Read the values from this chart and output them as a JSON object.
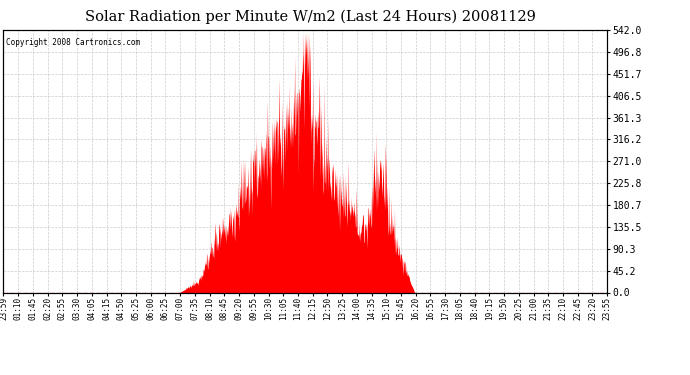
{
  "title": "Solar Radiation per Minute W/m2 (Last 24 Hours) 20081129",
  "copyright": "Copyright 2008 Cartronics.com",
  "background_color": "#ffffff",
  "plot_bg_color": "#ffffff",
  "fill_color": "#ff0000",
  "grid_color": "#cccccc",
  "dashed_line_color": "#ff0000",
  "ylim": [
    0.0,
    542.0
  ],
  "yticks": [
    0.0,
    45.2,
    90.3,
    135.5,
    180.7,
    225.8,
    271.0,
    316.2,
    361.3,
    406.5,
    451.7,
    496.8,
    542.0
  ],
  "ytick_labels": [
    "0.0",
    "45.2",
    "90.3",
    "135.5",
    "180.7",
    "225.8",
    "271.0",
    "316.2",
    "361.3",
    "406.5",
    "451.7",
    "496.8",
    "542.0"
  ],
  "xtick_labels": [
    "23:59",
    "01:10",
    "01:45",
    "02:20",
    "02:55",
    "03:30",
    "04:05",
    "04:15",
    "04:50",
    "05:25",
    "06:00",
    "06:25",
    "07:00",
    "07:35",
    "08:10",
    "08:45",
    "09:20",
    "09:55",
    "10:30",
    "11:05",
    "11:40",
    "12:15",
    "12:50",
    "13:25",
    "14:00",
    "14:35",
    "15:10",
    "15:45",
    "16:20",
    "16:55",
    "17:30",
    "18:05",
    "18:40",
    "19:15",
    "19:50",
    "20:25",
    "21:00",
    "21:35",
    "22:10",
    "22:45",
    "23:20",
    "23:55"
  ],
  "n_points": 1440
}
